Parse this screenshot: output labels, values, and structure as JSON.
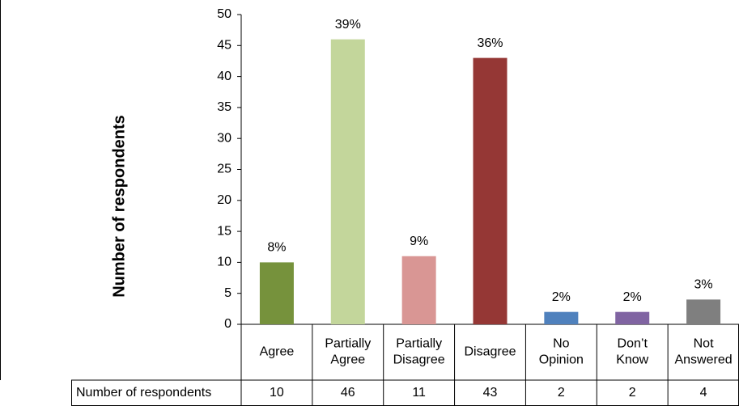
{
  "chart_data": {
    "type": "bar",
    "y_label": "Number of respondents",
    "categories": [
      "Agree",
      "Partially Agree",
      "Partially Disagree",
      "Disagree",
      "No Opinion",
      "Don’t Know",
      "Not Answered"
    ],
    "values": [
      10,
      46,
      11,
      43,
      2,
      2,
      4
    ],
    "percent_labels": [
      "8%",
      "39%",
      "9%",
      "36%",
      "2%",
      "2%",
      "3%"
    ],
    "colors": [
      "#76923c",
      "#c3d69b",
      "#d99694",
      "#953735",
      "#4f81bd",
      "#8064a2",
      "#7f7f7f"
    ],
    "ylim": [
      0,
      50
    ],
    "yticks": [
      0,
      5,
      10,
      15,
      20,
      25,
      30,
      35,
      40,
      45,
      50
    ],
    "table_row_label": "Number of respondents"
  }
}
